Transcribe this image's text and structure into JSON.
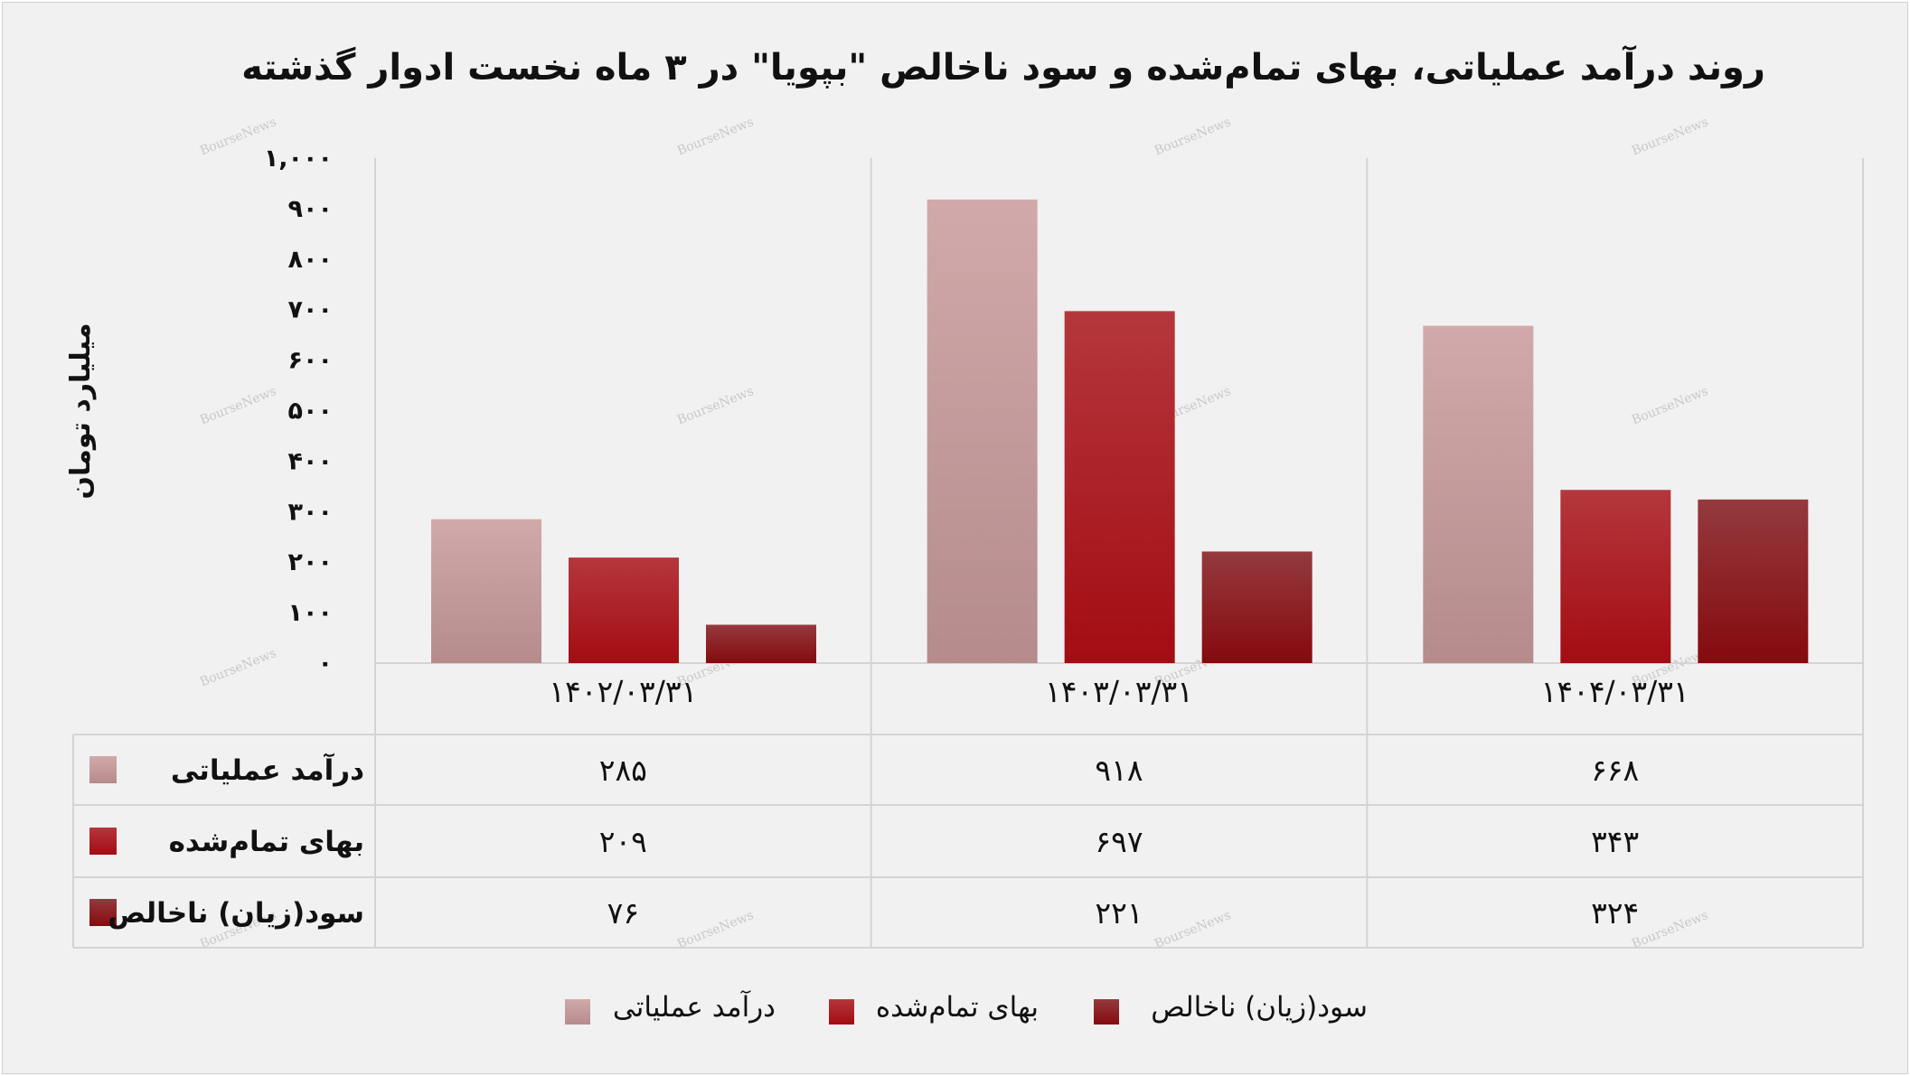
{
  "chart_data": {
    "type": "bar",
    "title": "روند درآمد عملیاتی، بهای تمام‌شده و سود ناخالص \"بپویا\" در ۳ ماه نخست ادوار گذشته",
    "ylabel": "میلیارد تومان",
    "xlabel": "",
    "categories": [
      "۱۴۰۲/۰۳/۳۱",
      "۱۴۰۳/۰۳/۳۱",
      "۱۴۰۴/۰۳/۳۱"
    ],
    "series": [
      {
        "name": "درآمد عملیاتی",
        "values": [
          285,
          918,
          668
        ],
        "labels": [
          "۲۸۵",
          "۹۱۸",
          "۶۶۸"
        ],
        "color_top": "#d2a9aa",
        "color_bottom": "#b58b8c"
      },
      {
        "name": "بهای تمام‌شده",
        "values": [
          209,
          697,
          343
        ],
        "labels": [
          "۲۰۹",
          "۶۹۷",
          "۳۴۳"
        ],
        "color_top": "#b4373c",
        "color_bottom": "#a30c12"
      },
      {
        "name": "سود(زیان) ناخالص",
        "values": [
          76,
          221,
          324
        ],
        "labels": [
          "۷۶",
          "۲۲۱",
          "۳۲۴"
        ],
        "color_top": "#943a3e",
        "color_bottom": "#850a0e"
      }
    ],
    "ylim": [
      0,
      1000
    ],
    "yticks": [
      0,
      100,
      200,
      300,
      400,
      500,
      600,
      700,
      800,
      900,
      1000
    ],
    "ytick_labels": [
      "۰",
      "۱۰۰",
      "۲۰۰",
      "۳۰۰",
      "۴۰۰",
      "۵۰۰",
      "۶۰۰",
      "۷۰۰",
      "۸۰۰",
      "۹۰۰",
      "۱,۰۰۰"
    ],
    "grid": "vertical-separators",
    "legend_position": "bottom-center",
    "data_table": true
  },
  "watermark": "BourseNews"
}
